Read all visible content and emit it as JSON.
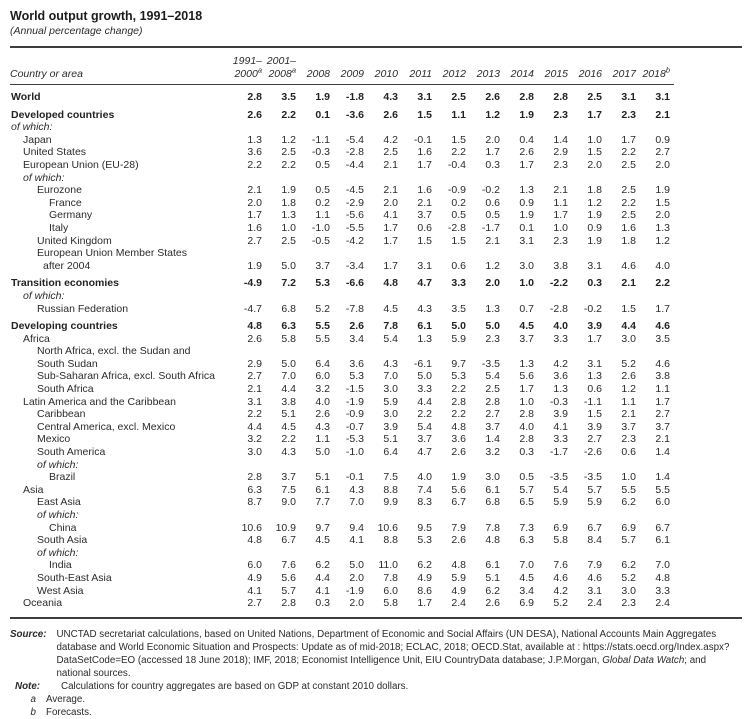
{
  "title": "World output growth, 1991–2018",
  "subtitle": "(Annual percentage change)",
  "table": {
    "label_header": "Country or area",
    "columns": [
      {
        "top": "1991–",
        "label": "2000",
        "sup": "a"
      },
      {
        "top": "2001–",
        "label": "2008",
        "sup": "a"
      },
      {
        "label": "2008"
      },
      {
        "label": "2009"
      },
      {
        "label": "2010"
      },
      {
        "label": "2011"
      },
      {
        "label": "2012"
      },
      {
        "label": "2013"
      },
      {
        "label": "2014"
      },
      {
        "label": "2015"
      },
      {
        "label": "2016"
      },
      {
        "label": "2017"
      },
      {
        "label": "2018",
        "sup": "b"
      }
    ],
    "rows": [
      {
        "label": "World",
        "ind": 0,
        "bold": true,
        "gap": true,
        "values": [
          "2.8",
          "3.5",
          "1.9",
          "-1.8",
          "4.3",
          "3.1",
          "2.5",
          "2.6",
          "2.8",
          "2.8",
          "2.5",
          "3.1",
          "3.1"
        ]
      },
      {
        "label": "Developed countries",
        "ind": 0,
        "bold": true,
        "gap": true,
        "values": [
          "2.6",
          "2.2",
          "0.1",
          "-3.6",
          "2.6",
          "1.5",
          "1.1",
          "1.2",
          "1.9",
          "2.3",
          "1.7",
          "2.3",
          "2.1"
        ]
      },
      {
        "label": "of which:",
        "ind": 0,
        "italic": true,
        "values": []
      },
      {
        "label": "Japan",
        "ind": 1,
        "values": [
          "1.3",
          "1.2",
          "-1.1",
          "-5.4",
          "4.2",
          "-0.1",
          "1.5",
          "2.0",
          "0.4",
          "1.4",
          "1.0",
          "1.7",
          "0.9"
        ]
      },
      {
        "label": "United States",
        "ind": 1,
        "values": [
          "3.6",
          "2.5",
          "-0.3",
          "-2.8",
          "2.5",
          "1.6",
          "2.2",
          "1.7",
          "2.6",
          "2.9",
          "1.5",
          "2.2",
          "2.7"
        ]
      },
      {
        "label": "European Union (EU-28)",
        "ind": 1,
        "values": [
          "2.2",
          "2.2",
          "0.5",
          "-4.4",
          "2.1",
          "1.7",
          "-0.4",
          "0.3",
          "1.7",
          "2.3",
          "2.0",
          "2.5",
          "2.0"
        ]
      },
      {
        "label": "of which:",
        "ind": 1,
        "italic": true,
        "values": []
      },
      {
        "label": "Eurozone",
        "ind": 2,
        "values": [
          "2.1",
          "1.9",
          "0.5",
          "-4.5",
          "2.1",
          "1.6",
          "-0.9",
          "-0.2",
          "1.3",
          "2.1",
          "1.8",
          "2.5",
          "1.9"
        ]
      },
      {
        "label": "France",
        "ind": 3,
        "values": [
          "2.0",
          "1.8",
          "0.2",
          "-2.9",
          "2.0",
          "2.1",
          "0.2",
          "0.6",
          "0.9",
          "1.1",
          "1.2",
          "2.2",
          "1.5"
        ]
      },
      {
        "label": "Germany",
        "ind": 3,
        "values": [
          "1.7",
          "1.3",
          "1.1",
          "-5.6",
          "4.1",
          "3.7",
          "0.5",
          "0.5",
          "1.9",
          "1.7",
          "1.9",
          "2.5",
          "2.0"
        ]
      },
      {
        "label": "Italy",
        "ind": 3,
        "values": [
          "1.6",
          "1.0",
          "-1.0",
          "-5.5",
          "1.7",
          "0.6",
          "-2.8",
          "-1.7",
          "0.1",
          "1.0",
          "0.9",
          "1.6",
          "1.3"
        ]
      },
      {
        "label": "United Kingdom",
        "ind": 2,
        "values": [
          "2.7",
          "2.5",
          "-0.5",
          "-4.2",
          "1.7",
          "1.5",
          "1.5",
          "2.1",
          "3.1",
          "2.3",
          "1.9",
          "1.8",
          "1.2"
        ]
      },
      {
        "label": "European Union Member States",
        "label2": "after 2004",
        "ind": 2,
        "values": [
          "1.9",
          "5.0",
          "3.7",
          "-3.4",
          "1.7",
          "3.1",
          "0.6",
          "1.2",
          "3.0",
          "3.8",
          "3.1",
          "4.6",
          "4.0"
        ]
      },
      {
        "label": "Transition economies",
        "ind": 0,
        "bold": true,
        "gap": true,
        "values": [
          "-4.9",
          "7.2",
          "5.3",
          "-6.6",
          "4.8",
          "4.7",
          "3.3",
          "2.0",
          "1.0",
          "-2.2",
          "0.3",
          "2.1",
          "2.2"
        ]
      },
      {
        "label": "of which:",
        "ind": 1,
        "italic": true,
        "values": []
      },
      {
        "label": "Russian Federation",
        "ind": 2,
        "values": [
          "-4.7",
          "6.8",
          "5.2",
          "-7.8",
          "4.5",
          "4.3",
          "3.5",
          "1.3",
          "0.7",
          "-2.8",
          "-0.2",
          "1.5",
          "1.7"
        ]
      },
      {
        "label": "Developing countries",
        "ind": 0,
        "bold": true,
        "gap": true,
        "values": [
          "4.8",
          "6.3",
          "5.5",
          "2.6",
          "7.8",
          "6.1",
          "5.0",
          "5.0",
          "4.5",
          "4.0",
          "3.9",
          "4.4",
          "4.6"
        ]
      },
      {
        "label": "Africa",
        "ind": 1,
        "values": [
          "2.6",
          "5.8",
          "5.5",
          "3.4",
          "5.4",
          "1.3",
          "5.9",
          "2.3",
          "3.7",
          "3.3",
          "1.7",
          "3.0",
          "3.5"
        ]
      },
      {
        "label": "North Africa, excl. the Sudan and",
        "label2": "South Sudan",
        "ind": 2,
        "l2flush": true,
        "values": [
          "2.9",
          "5.0",
          "6.4",
          "3.6",
          "4.3",
          "-6.1",
          "9.7",
          "-3.5",
          "1.3",
          "4.2",
          "3.1",
          "5.2",
          "4.6"
        ]
      },
      {
        "label": "Sub-Saharan Africa, excl. South Africa",
        "ind": 2,
        "values": [
          "2.7",
          "7.0",
          "6.0",
          "5.3",
          "7.0",
          "5.0",
          "5.3",
          "5.4",
          "5.6",
          "3.6",
          "1.3",
          "2.6",
          "3.8"
        ]
      },
      {
        "label": "South Africa",
        "ind": 2,
        "values": [
          "2.1",
          "4.4",
          "3.2",
          "-1.5",
          "3.0",
          "3.3",
          "2.2",
          "2.5",
          "1.7",
          "1.3",
          "0.6",
          "1.2",
          "1.1"
        ]
      },
      {
        "label": "Latin America and the Caribbean",
        "ind": 1,
        "values": [
          "3.1",
          "3.8",
          "4.0",
          "-1.9",
          "5.9",
          "4.4",
          "2.8",
          "2.8",
          "1.0",
          "-0.3",
          "-1.1",
          "1.1",
          "1.7"
        ]
      },
      {
        "label": "Caribbean",
        "ind": 2,
        "values": [
          "2.2",
          "5.1",
          "2.6",
          "-0.9",
          "3.0",
          "2.2",
          "2.2",
          "2.7",
          "2.8",
          "3.9",
          "1.5",
          "2.1",
          "2.7"
        ]
      },
      {
        "label": "Central America, excl. Mexico",
        "ind": 2,
        "values": [
          "4.4",
          "4.5",
          "4.3",
          "-0.7",
          "3.9",
          "5.4",
          "4.8",
          "3.7",
          "4.0",
          "4.1",
          "3.9",
          "3.7",
          "3.7"
        ]
      },
      {
        "label": "Mexico",
        "ind": 2,
        "values": [
          "3.2",
          "2.2",
          "1.1",
          "-5.3",
          "5.1",
          "3.7",
          "3.6",
          "1.4",
          "2.8",
          "3.3",
          "2.7",
          "2.3",
          "2.1"
        ]
      },
      {
        "label": "South America",
        "ind": 2,
        "values": [
          "3.0",
          "4.3",
          "5.0",
          "-1.0",
          "6.4",
          "4.7",
          "2.6",
          "3.2",
          "0.3",
          "-1.7",
          "-2.6",
          "0.6",
          "1.4"
        ]
      },
      {
        "label": "of which:",
        "ind": 2,
        "italic": true,
        "values": []
      },
      {
        "label": "Brazil",
        "ind": 3,
        "values": [
          "2.8",
          "3.7",
          "5.1",
          "-0.1",
          "7.5",
          "4.0",
          "1.9",
          "3.0",
          "0.5",
          "-3.5",
          "-3.5",
          "1.0",
          "1.4"
        ]
      },
      {
        "label": "Asia",
        "ind": 1,
        "values": [
          "6.3",
          "7.5",
          "6.1",
          "4.3",
          "8.8",
          "7.4",
          "5.6",
          "6.1",
          "5.7",
          "5.4",
          "5.7",
          "5.5",
          "5.5"
        ]
      },
      {
        "label": "East Asia",
        "ind": 2,
        "values": [
          "8.7",
          "9.0",
          "7.7",
          "7.0",
          "9.9",
          "8.3",
          "6.7",
          "6.8",
          "6.5",
          "5.9",
          "5.9",
          "6.2",
          "6.0"
        ]
      },
      {
        "label": "of which:",
        "ind": 2,
        "italic": true,
        "values": []
      },
      {
        "label": "China",
        "ind": 3,
        "values": [
          "10.6",
          "10.9",
          "9.7",
          "9.4",
          "10.6",
          "9.5",
          "7.9",
          "7.8",
          "7.3",
          "6.9",
          "6.7",
          "6.9",
          "6.7"
        ]
      },
      {
        "label": "South Asia",
        "ind": 2,
        "values": [
          "4.8",
          "6.7",
          "4.5",
          "4.1",
          "8.8",
          "5.3",
          "2.6",
          "4.8",
          "6.3",
          "5.8",
          "8.4",
          "5.7",
          "6.1"
        ]
      },
      {
        "label": "of which:",
        "ind": 2,
        "italic": true,
        "values": []
      },
      {
        "label": "India",
        "ind": 3,
        "values": [
          "6.0",
          "7.6",
          "6.2",
          "5.0",
          "11.0",
          "6.2",
          "4.8",
          "6.1",
          "7.0",
          "7.6",
          "7.9",
          "6.2",
          "7.0"
        ]
      },
      {
        "label": "South-East Asia",
        "ind": 2,
        "values": [
          "4.9",
          "5.6",
          "4.4",
          "2.0",
          "7.8",
          "4.9",
          "5.9",
          "5.1",
          "4.5",
          "4.6",
          "4.6",
          "5.2",
          "4.8"
        ]
      },
      {
        "label": "West Asia",
        "ind": 2,
        "values": [
          "4.1",
          "5.7",
          "4.1",
          "-1.9",
          "6.0",
          "8.6",
          "4.9",
          "6.2",
          "3.4",
          "4.2",
          "3.1",
          "3.0",
          "3.3"
        ]
      },
      {
        "label": "Oceania",
        "ind": 1,
        "values": [
          "2.7",
          "2.8",
          "0.3",
          "2.0",
          "5.8",
          "1.7",
          "2.4",
          "2.6",
          "6.9",
          "5.2",
          "2.4",
          "2.3",
          "2.4"
        ]
      }
    ]
  },
  "footer": {
    "source_label": "Source:",
    "source_parts": [
      {
        "text": "UNCTAD secretariat calculations, based on United Nations, Department of Economic and Social Affairs (UN DESA), National Accounts Main Aggregates database and World Economic Situation and Prospects: Update as of mid-2018; ECLAC, 2018; OECD.Stat, available at : https://stats.oecd.org/Index.aspx?DataSetCode=EO (accessed 18 June 2018); IMF, 2018; Economist Intelligence Unit, EIU CountryData database; J.P.Morgan, ",
        "italic": false
      },
      {
        "text": "Global Data Watch",
        "italic": true
      },
      {
        "text": "; and national sources.",
        "italic": false
      }
    ],
    "note_label": "Note:",
    "note_text": "Calculations for country aggregates are based on GDP at constant 2010 dollars.",
    "footnotes": [
      {
        "marker": "a",
        "text": "Average."
      },
      {
        "marker": "b",
        "text": "Forecasts."
      }
    ]
  }
}
